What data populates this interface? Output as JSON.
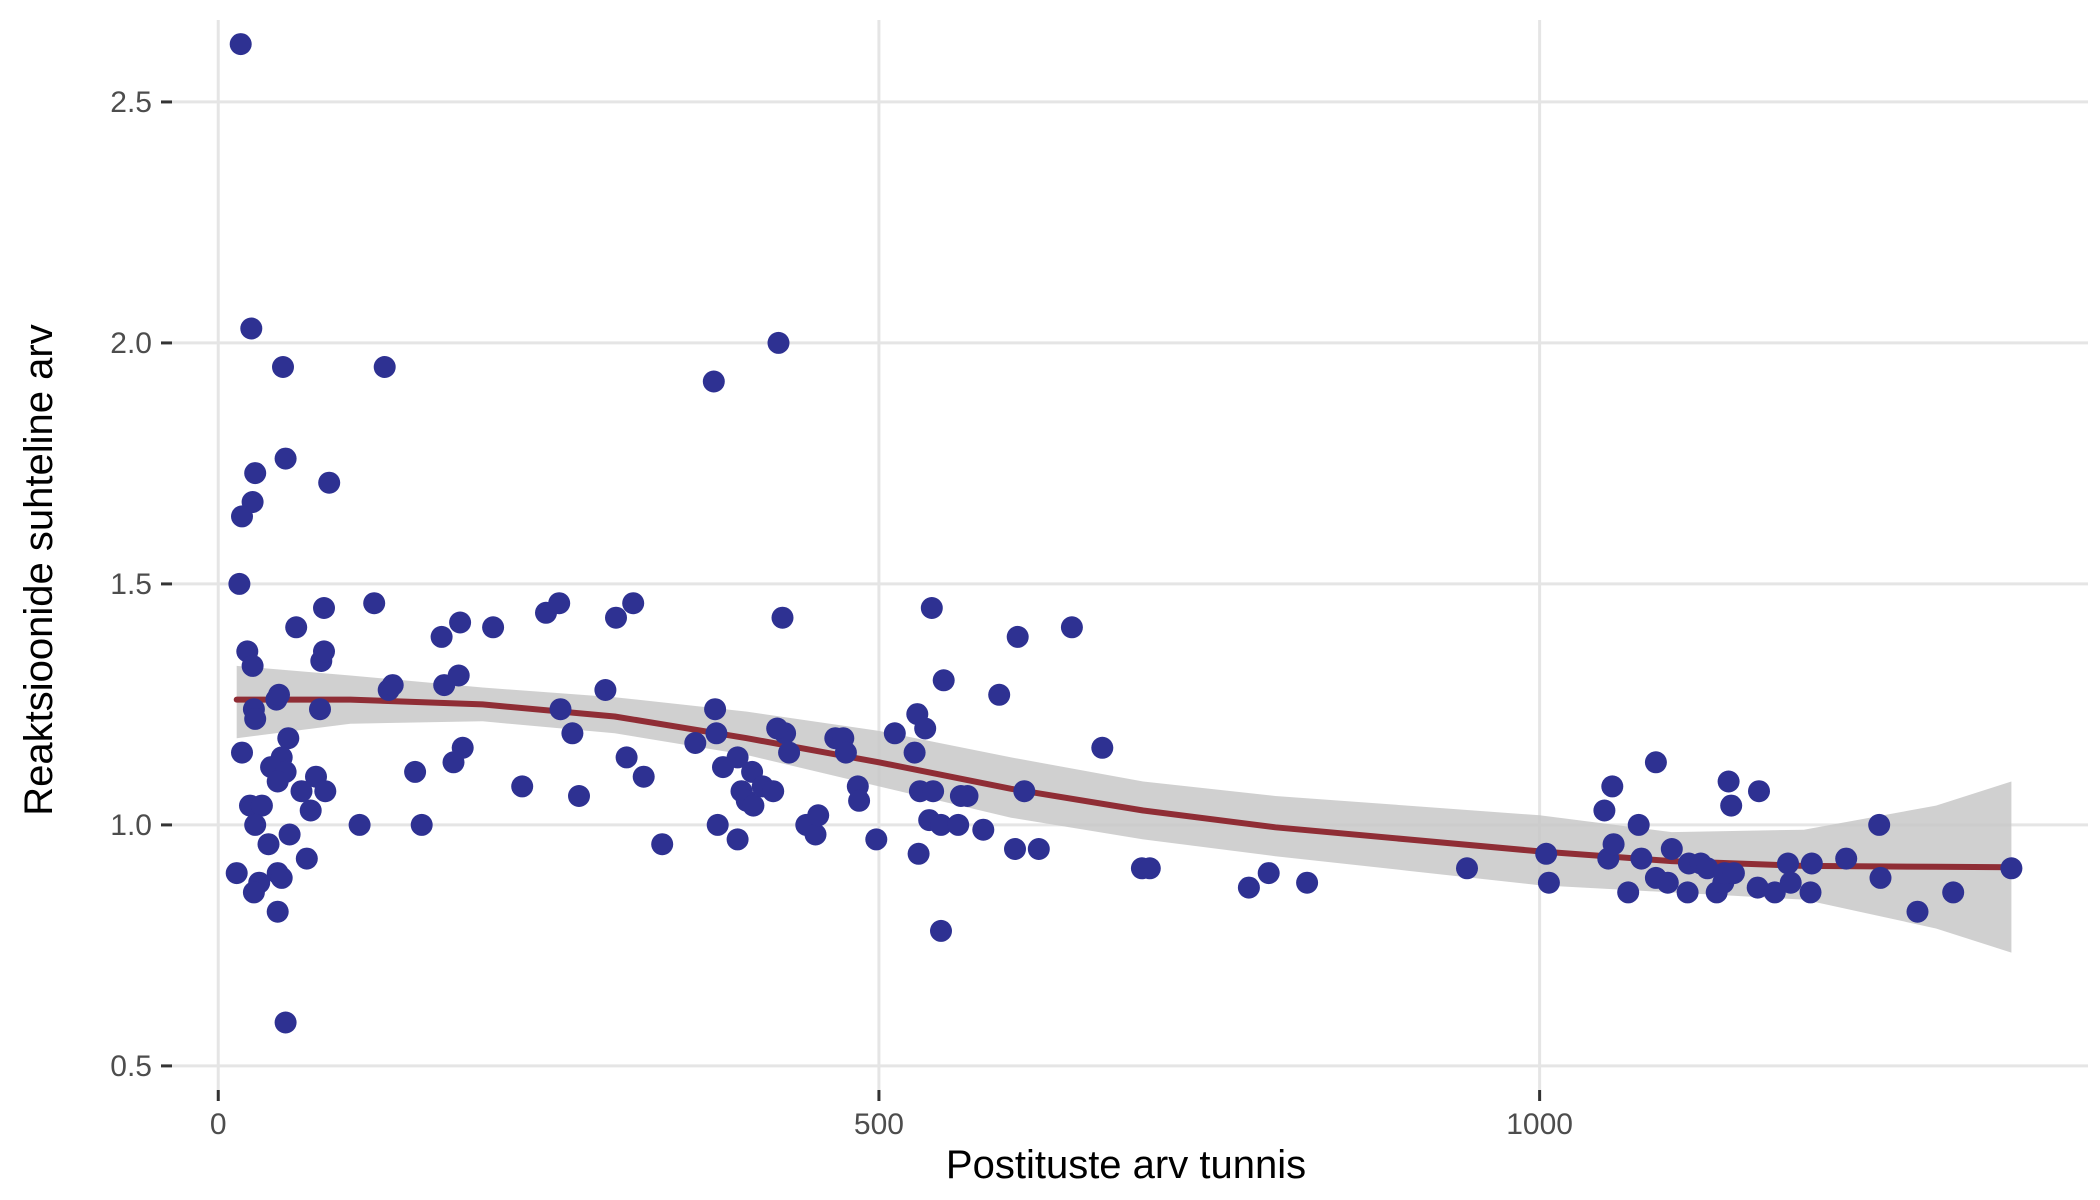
{
  "chart_data": {
    "type": "scatter",
    "title": "",
    "xlabel": "Postituste arv tunnis",
    "ylabel": "Reaktsioonide suhteline arv",
    "xlim": [
      -35,
      1415
    ],
    "ylim": [
      0.45,
      2.67
    ],
    "x_ticks": [
      0,
      500,
      1000
    ],
    "x_tick_labels": [
      "0",
      "500",
      "1000"
    ],
    "y_ticks": [
      0.5,
      1.0,
      1.5,
      2.0,
      2.5
    ],
    "y_tick_labels": [
      "0.5",
      "1.0",
      "1.5",
      "2.0",
      "2.5"
    ],
    "grid": true,
    "legend": "none",
    "colors": {
      "points": "#2e3192",
      "smooth_line": "#8f2d35",
      "confidence_band": "#c8c8c8",
      "grid": "#e5e5e5",
      "background": "#ffffff"
    },
    "series": [
      {
        "kind": "points",
        "points": [
          [
            17,
            2.62
          ],
          [
            25,
            2.03
          ],
          [
            49,
            1.95
          ],
          [
            126,
            1.95
          ],
          [
            28,
            1.73
          ],
          [
            51,
            1.76
          ],
          [
            84,
            1.71
          ],
          [
            26,
            1.67
          ],
          [
            18,
            1.64
          ],
          [
            16,
            1.5
          ],
          [
            22,
            1.36
          ],
          [
            26,
            1.33
          ],
          [
            27,
            1.24
          ],
          [
            28,
            1.22
          ],
          [
            44,
            1.26
          ],
          [
            46,
            1.27
          ],
          [
            78,
            1.34
          ],
          [
            80,
            1.36
          ],
          [
            80,
            1.45
          ],
          [
            59,
            1.41
          ],
          [
            77,
            1.24
          ],
          [
            53,
            1.18
          ],
          [
            18,
            1.15
          ],
          [
            48,
            1.14
          ],
          [
            40,
            1.12
          ],
          [
            51,
            1.11
          ],
          [
            45,
            1.09
          ],
          [
            74,
            1.1
          ],
          [
            63,
            1.07
          ],
          [
            81,
            1.07
          ],
          [
            24,
            1.04
          ],
          [
            33,
            1.04
          ],
          [
            70,
            1.03
          ],
          [
            28,
            1.0
          ],
          [
            54,
            0.98
          ],
          [
            38,
            0.96
          ],
          [
            67,
            0.93
          ],
          [
            14,
            0.9
          ],
          [
            45,
            0.9
          ],
          [
            48,
            0.89
          ],
          [
            31,
            0.88
          ],
          [
            27,
            0.86
          ],
          [
            45,
            0.82
          ],
          [
            51,
            0.59
          ],
          [
            118,
            1.46
          ],
          [
            129,
            1.28
          ],
          [
            132,
            1.29
          ],
          [
            107,
            1.0
          ],
          [
            149,
            1.11
          ],
          [
            154,
            1.0
          ],
          [
            169,
            1.39
          ],
          [
            171,
            1.29
          ],
          [
            178,
            1.13
          ],
          [
            182,
            1.31
          ],
          [
            183,
            1.42
          ],
          [
            185,
            1.16
          ],
          [
            208,
            1.41
          ],
          [
            230,
            1.08
          ],
          [
            248,
            1.44
          ],
          [
            258,
            1.46
          ],
          [
            259,
            1.24
          ],
          [
            268,
            1.19
          ],
          [
            273,
            1.06
          ],
          [
            293,
            1.28
          ],
          [
            301,
            1.43
          ],
          [
            309,
            1.14
          ],
          [
            314,
            1.46
          ],
          [
            322,
            1.1
          ],
          [
            336,
            0.96
          ],
          [
            361,
            1.17
          ],
          [
            375,
            1.92
          ],
          [
            376,
            1.24
          ],
          [
            377,
            1.19
          ],
          [
            378,
            1.0
          ],
          [
            382,
            1.12
          ],
          [
            393,
            1.14
          ],
          [
            396,
            1.07
          ],
          [
            400,
            1.05
          ],
          [
            404,
            1.11
          ],
          [
            405,
            1.04
          ],
          [
            412,
            1.08
          ],
          [
            393,
            0.97
          ],
          [
            420,
            1.07
          ],
          [
            424,
            2.0
          ],
          [
            427,
            1.43
          ],
          [
            429,
            1.19
          ],
          [
            432,
            1.15
          ],
          [
            423,
            1.2
          ],
          [
            445,
            1.0
          ],
          [
            452,
            0.98
          ],
          [
            454,
            1.02
          ],
          [
            467,
            1.18
          ],
          [
            473,
            1.18
          ],
          [
            475,
            1.15
          ],
          [
            484,
            1.08
          ],
          [
            485,
            1.05
          ],
          [
            498,
            0.97
          ],
          [
            512,
            1.19
          ],
          [
            527,
            1.15
          ],
          [
            529,
            1.23
          ],
          [
            531,
            1.07
          ],
          [
            530,
            0.94
          ],
          [
            535,
            1.2
          ],
          [
            538,
            1.01
          ],
          [
            541,
            1.07
          ],
          [
            540,
            1.45
          ],
          [
            547,
            1.0
          ],
          [
            549,
            1.3
          ],
          [
            547,
            0.78
          ],
          [
            560,
            1.0
          ],
          [
            562,
            1.06
          ],
          [
            567,
            1.06
          ],
          [
            579,
            0.99
          ],
          [
            591,
            1.27
          ],
          [
            603,
            0.95
          ],
          [
            605,
            1.39
          ],
          [
            610,
            1.07
          ],
          [
            621,
            0.95
          ],
          [
            646,
            1.41
          ],
          [
            669,
            1.16
          ],
          [
            699,
            0.91
          ],
          [
            705,
            0.91
          ],
          [
            780,
            0.87
          ],
          [
            795,
            0.9
          ],
          [
            824,
            0.88
          ],
          [
            945,
            0.91
          ],
          [
            1005,
            0.94
          ],
          [
            1007,
            0.88
          ],
          [
            1049,
            1.03
          ],
          [
            1052,
            0.93
          ],
          [
            1055,
            1.08
          ],
          [
            1056,
            0.96
          ],
          [
            1067,
            0.86
          ],
          [
            1075,
            1.0
          ],
          [
            1077,
            0.93
          ],
          [
            1088,
            1.13
          ],
          [
            1088,
            0.89
          ],
          [
            1097,
            0.88
          ],
          [
            1100,
            0.95
          ],
          [
            1112,
            0.86
          ],
          [
            1113,
            0.92
          ],
          [
            1122,
            0.92
          ],
          [
            1127,
            0.91
          ],
          [
            1134,
            0.86
          ],
          [
            1139,
            0.88
          ],
          [
            1140,
            0.9
          ],
          [
            1143,
            1.09
          ],
          [
            1145,
            1.04
          ],
          [
            1147,
            0.9
          ],
          [
            1165,
            0.87
          ],
          [
            1166,
            1.07
          ],
          [
            1178,
            0.86
          ],
          [
            1188,
            0.92
          ],
          [
            1190,
            0.88
          ],
          [
            1206,
            0.92
          ],
          [
            1205,
            0.86
          ],
          [
            1232,
            0.93
          ],
          [
            1257,
            1.0
          ],
          [
            1258,
            0.89
          ],
          [
            1286,
            0.82
          ],
          [
            1313,
            0.86
          ],
          [
            1357,
            0.91
          ]
        ]
      },
      {
        "kind": "smooth",
        "x": [
          14,
          100,
          200,
          300,
          400,
          500,
          600,
          700,
          800,
          900,
          1000,
          1100,
          1200,
          1300,
          1357
        ],
        "y": [
          1.26,
          1.26,
          1.25,
          1.225,
          1.18,
          1.13,
          1.075,
          1.03,
          0.995,
          0.97,
          0.945,
          0.925,
          0.915,
          0.913,
          0.912
        ],
        "upper": [
          1.33,
          1.31,
          1.285,
          1.265,
          1.235,
          1.195,
          1.14,
          1.09,
          1.06,
          1.04,
          1.02,
          0.985,
          0.99,
          1.04,
          1.09
        ],
        "lower": [
          1.18,
          1.21,
          1.215,
          1.19,
          1.145,
          1.08,
          1.015,
          0.97,
          0.935,
          0.905,
          0.875,
          0.86,
          0.845,
          0.785,
          0.735
        ]
      }
    ]
  }
}
